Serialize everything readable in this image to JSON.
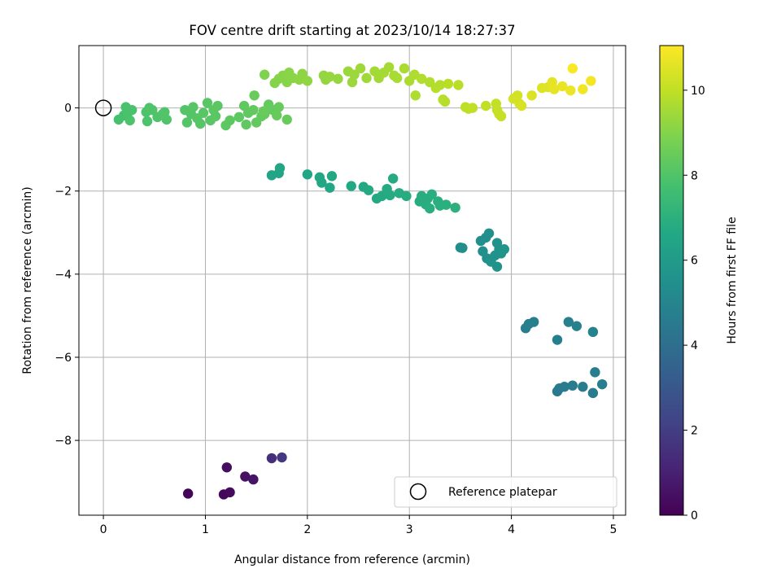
{
  "chart_data": {
    "type": "scatter",
    "title": "FOV centre drift starting at 2023/10/14 18:27:37",
    "xlabel": "Angular distance from reference (arcmin)",
    "ylabel": "Rotation from reference (arcmin)",
    "xlim": [
      -0.24,
      5.12
    ],
    "ylim": [
      -9.8,
      1.5
    ],
    "xticks": [
      0,
      1,
      2,
      3,
      4,
      5
    ],
    "yticks": [
      0,
      -2,
      -4,
      -6,
      -8
    ],
    "grid": true,
    "legend": {
      "placement": "lower-right",
      "entries": [
        {
          "label": "Reference platepar",
          "marker": "open-circle"
        }
      ]
    },
    "reference_point": {
      "x": 0,
      "y": 0
    },
    "colorbar": {
      "label": "Hours from first FF file",
      "min": 0,
      "max": 11.05,
      "ticks": [
        0,
        2,
        4,
        6,
        8,
        10
      ],
      "colormap": "viridis"
    },
    "points": [
      {
        "x": 0.83,
        "y": -9.28,
        "t": 0.1
      },
      {
        "x": 1.18,
        "y": -9.3,
        "t": 0.2
      },
      {
        "x": 1.24,
        "y": -9.25,
        "t": 0.3
      },
      {
        "x": 1.21,
        "y": -8.65,
        "t": 0.4
      },
      {
        "x": 1.39,
        "y": -8.87,
        "t": 0.5
      },
      {
        "x": 1.47,
        "y": -8.94,
        "t": 0.6
      },
      {
        "x": 1.65,
        "y": -8.43,
        "t": 1.5
      },
      {
        "x": 1.75,
        "y": -8.41,
        "t": 1.8
      },
      {
        "x": 4.45,
        "y": -6.82,
        "t": 4.5
      },
      {
        "x": 4.47,
        "y": -6.75,
        "t": 4.5
      },
      {
        "x": 4.52,
        "y": -6.71,
        "t": 4.55
      },
      {
        "x": 4.6,
        "y": -6.68,
        "t": 4.55
      },
      {
        "x": 4.7,
        "y": -6.71,
        "t": 4.6
      },
      {
        "x": 4.8,
        "y": -6.86,
        "t": 4.6
      },
      {
        "x": 4.82,
        "y": -6.36,
        "t": 4.65
      },
      {
        "x": 4.89,
        "y": -6.65,
        "t": 4.65
      },
      {
        "x": 4.14,
        "y": -5.3,
        "t": 4.7
      },
      {
        "x": 4.17,
        "y": -5.2,
        "t": 4.7
      },
      {
        "x": 4.22,
        "y": -5.15,
        "t": 4.75
      },
      {
        "x": 4.45,
        "y": -5.58,
        "t": 4.75
      },
      {
        "x": 4.56,
        "y": -5.15,
        "t": 4.8
      },
      {
        "x": 4.64,
        "y": -5.25,
        "t": 4.8
      },
      {
        "x": 4.8,
        "y": -5.39,
        "t": 4.85
      },
      {
        "x": 3.5,
        "y": -3.36,
        "t": 5.4
      },
      {
        "x": 3.52,
        "y": -3.37,
        "t": 5.4
      },
      {
        "x": 3.7,
        "y": -3.2,
        "t": 5.45
      },
      {
        "x": 3.72,
        "y": -3.45,
        "t": 5.45
      },
      {
        "x": 3.75,
        "y": -3.12,
        "t": 5.5
      },
      {
        "x": 3.78,
        "y": -3.02,
        "t": 5.5
      },
      {
        "x": 3.76,
        "y": -3.62,
        "t": 5.5
      },
      {
        "x": 3.8,
        "y": -3.7,
        "t": 5.55
      },
      {
        "x": 3.84,
        "y": -3.55,
        "t": 5.55
      },
      {
        "x": 3.86,
        "y": -3.25,
        "t": 5.55
      },
      {
        "x": 3.88,
        "y": -3.4,
        "t": 5.6
      },
      {
        "x": 3.86,
        "y": -3.82,
        "t": 5.6
      },
      {
        "x": 3.9,
        "y": -3.5,
        "t": 5.6
      },
      {
        "x": 3.93,
        "y": -3.4,
        "t": 5.65
      },
      {
        "x": 1.65,
        "y": -1.62,
        "t": 6.5
      },
      {
        "x": 1.72,
        "y": -1.57,
        "t": 6.5
      },
      {
        "x": 1.73,
        "y": -1.45,
        "t": 6.55
      },
      {
        "x": 2.0,
        "y": -1.6,
        "t": 6.55
      },
      {
        "x": 2.12,
        "y": -1.67,
        "t": 6.6
      },
      {
        "x": 2.14,
        "y": -1.8,
        "t": 6.6
      },
      {
        "x": 2.22,
        "y": -1.92,
        "t": 6.6
      },
      {
        "x": 2.24,
        "y": -1.64,
        "t": 6.65
      },
      {
        "x": 2.43,
        "y": -1.88,
        "t": 6.65
      },
      {
        "x": 2.55,
        "y": -1.9,
        "t": 6.65
      },
      {
        "x": 2.6,
        "y": -1.98,
        "t": 6.7
      },
      {
        "x": 2.68,
        "y": -2.18,
        "t": 6.7
      },
      {
        "x": 2.73,
        "y": -2.12,
        "t": 6.7
      },
      {
        "x": 2.78,
        "y": -1.95,
        "t": 6.75
      },
      {
        "x": 2.81,
        "y": -2.1,
        "t": 6.75
      },
      {
        "x": 2.84,
        "y": -1.7,
        "t": 6.75
      },
      {
        "x": 2.9,
        "y": -2.05,
        "t": 6.8
      },
      {
        "x": 2.97,
        "y": -2.12,
        "t": 6.8
      },
      {
        "x": 3.1,
        "y": -2.25,
        "t": 6.8
      },
      {
        "x": 3.12,
        "y": -2.12,
        "t": 6.85
      },
      {
        "x": 3.16,
        "y": -2.32,
        "t": 6.85
      },
      {
        "x": 3.18,
        "y": -2.18,
        "t": 6.85
      },
      {
        "x": 3.2,
        "y": -2.42,
        "t": 6.9
      },
      {
        "x": 3.22,
        "y": -2.08,
        "t": 6.9
      },
      {
        "x": 3.28,
        "y": -2.25,
        "t": 6.9
      },
      {
        "x": 3.3,
        "y": -2.35,
        "t": 6.95
      },
      {
        "x": 3.36,
        "y": -2.33,
        "t": 6.95
      },
      {
        "x": 3.45,
        "y": -2.4,
        "t": 7.0
      },
      {
        "x": 0.15,
        "y": -0.28,
        "t": 7.8
      },
      {
        "x": 0.2,
        "y": -0.18,
        "t": 7.8
      },
      {
        "x": 0.22,
        "y": 0.02,
        "t": 7.85
      },
      {
        "x": 0.24,
        "y": -0.12,
        "t": 7.85
      },
      {
        "x": 0.28,
        "y": -0.05,
        "t": 7.85
      },
      {
        "x": 0.26,
        "y": -0.3,
        "t": 7.9
      },
      {
        "x": 0.42,
        "y": -0.1,
        "t": 7.9
      },
      {
        "x": 0.43,
        "y": -0.32,
        "t": 7.9
      },
      {
        "x": 0.45,
        "y": 0.0,
        "t": 7.95
      },
      {
        "x": 0.48,
        "y": -0.05,
        "t": 7.95
      },
      {
        "x": 0.53,
        "y": -0.22,
        "t": 7.95
      },
      {
        "x": 0.58,
        "y": -0.15,
        "t": 8.0
      },
      {
        "x": 0.62,
        "y": -0.28,
        "t": 8.0
      },
      {
        "x": 0.6,
        "y": -0.1,
        "t": 8.0
      },
      {
        "x": 0.8,
        "y": -0.05,
        "t": 8.05
      },
      {
        "x": 0.82,
        "y": -0.35,
        "t": 8.05
      },
      {
        "x": 0.86,
        "y": -0.15,
        "t": 8.05
      },
      {
        "x": 0.88,
        "y": 0.02,
        "t": 8.1
      },
      {
        "x": 0.92,
        "y": -0.25,
        "t": 8.1
      },
      {
        "x": 0.95,
        "y": -0.38,
        "t": 8.1
      },
      {
        "x": 0.98,
        "y": -0.12,
        "t": 8.15
      },
      {
        "x": 1.02,
        "y": 0.12,
        "t": 8.15
      },
      {
        "x": 1.05,
        "y": -0.3,
        "t": 8.15
      },
      {
        "x": 1.08,
        "y": -0.05,
        "t": 8.2
      },
      {
        "x": 1.1,
        "y": -0.2,
        "t": 8.2
      },
      {
        "x": 1.12,
        "y": 0.05,
        "t": 8.2
      },
      {
        "x": 1.2,
        "y": -0.42,
        "t": 8.25
      },
      {
        "x": 1.24,
        "y": -0.3,
        "t": 8.25
      },
      {
        "x": 1.33,
        "y": -0.22,
        "t": 8.25
      },
      {
        "x": 1.38,
        "y": 0.05,
        "t": 8.3
      },
      {
        "x": 1.4,
        "y": -0.4,
        "t": 8.3
      },
      {
        "x": 1.42,
        "y": -0.12,
        "t": 8.3
      },
      {
        "x": 1.47,
        "y": -0.05,
        "t": 8.35
      },
      {
        "x": 1.5,
        "y": -0.35,
        "t": 8.35
      },
      {
        "x": 1.55,
        "y": -0.2,
        "t": 8.35
      },
      {
        "x": 1.58,
        "y": -0.15,
        "t": 8.4
      },
      {
        "x": 1.62,
        "y": 0.08,
        "t": 8.4
      },
      {
        "x": 1.66,
        "y": -0.05,
        "t": 8.4
      },
      {
        "x": 1.7,
        "y": -0.18,
        "t": 8.45
      },
      {
        "x": 1.72,
        "y": 0.02,
        "t": 8.45
      },
      {
        "x": 1.8,
        "y": -0.28,
        "t": 8.45
      },
      {
        "x": 1.48,
        "y": 0.3,
        "t": 8.5
      },
      {
        "x": 1.57,
        "y": -0.08,
        "t": 8.5
      },
      {
        "x": 1.58,
        "y": 0.8,
        "t": 8.9
      },
      {
        "x": 1.68,
        "y": 0.6,
        "t": 9.0
      },
      {
        "x": 1.72,
        "y": 0.7,
        "t": 9.0
      },
      {
        "x": 1.76,
        "y": 0.78,
        "t": 9.05
      },
      {
        "x": 1.8,
        "y": 0.62,
        "t": 9.05
      },
      {
        "x": 1.82,
        "y": 0.85,
        "t": 9.1
      },
      {
        "x": 1.86,
        "y": 0.72,
        "t": 9.1
      },
      {
        "x": 1.92,
        "y": 0.68,
        "t": 9.15
      },
      {
        "x": 1.95,
        "y": 0.82,
        "t": 9.15
      },
      {
        "x": 2.0,
        "y": 0.65,
        "t": 9.2
      },
      {
        "x": 2.16,
        "y": 0.78,
        "t": 9.25
      },
      {
        "x": 2.18,
        "y": 0.68,
        "t": 9.25
      },
      {
        "x": 2.22,
        "y": 0.75,
        "t": 9.3
      },
      {
        "x": 2.3,
        "y": 0.7,
        "t": 9.3
      },
      {
        "x": 2.4,
        "y": 0.88,
        "t": 9.35
      },
      {
        "x": 2.44,
        "y": 0.62,
        "t": 9.4
      },
      {
        "x": 2.46,
        "y": 0.8,
        "t": 9.4
      },
      {
        "x": 2.52,
        "y": 0.95,
        "t": 9.45
      },
      {
        "x": 2.58,
        "y": 0.72,
        "t": 9.45
      },
      {
        "x": 2.66,
        "y": 0.88,
        "t": 9.5
      },
      {
        "x": 2.7,
        "y": 0.72,
        "t": 9.5
      },
      {
        "x": 2.75,
        "y": 0.85,
        "t": 9.55
      },
      {
        "x": 2.8,
        "y": 0.98,
        "t": 9.55
      },
      {
        "x": 2.85,
        "y": 0.78,
        "t": 9.6
      },
      {
        "x": 2.88,
        "y": 0.72,
        "t": 9.6
      },
      {
        "x": 2.95,
        "y": 0.95,
        "t": 9.65
      },
      {
        "x": 3.0,
        "y": 0.65,
        "t": 9.65
      },
      {
        "x": 3.05,
        "y": 0.8,
        "t": 9.7
      },
      {
        "x": 3.06,
        "y": 0.3,
        "t": 9.7
      },
      {
        "x": 3.12,
        "y": 0.7,
        "t": 9.75
      },
      {
        "x": 3.2,
        "y": 0.62,
        "t": 9.75
      },
      {
        "x": 3.26,
        "y": 0.48,
        "t": 9.8
      },
      {
        "x": 3.3,
        "y": 0.55,
        "t": 9.8
      },
      {
        "x": 3.33,
        "y": 0.2,
        "t": 9.85
      },
      {
        "x": 3.35,
        "y": 0.15,
        "t": 9.85
      },
      {
        "x": 3.38,
        "y": 0.58,
        "t": 9.9
      },
      {
        "x": 3.48,
        "y": 0.55,
        "t": 9.9
      },
      {
        "x": 3.55,
        "y": 0.02,
        "t": 9.95
      },
      {
        "x": 3.58,
        "y": -0.02,
        "t": 9.95
      },
      {
        "x": 3.62,
        "y": 0.0,
        "t": 10.0
      },
      {
        "x": 3.75,
        "y": 0.05,
        "t": 10.0
      },
      {
        "x": 3.85,
        "y": 0.1,
        "t": 10.05
      },
      {
        "x": 3.86,
        "y": -0.05,
        "t": 10.05
      },
      {
        "x": 3.88,
        "y": -0.15,
        "t": 10.1
      },
      {
        "x": 3.9,
        "y": -0.2,
        "t": 10.1
      },
      {
        "x": 4.02,
        "y": 0.22,
        "t": 10.3
      },
      {
        "x": 4.06,
        "y": 0.3,
        "t": 10.35
      },
      {
        "x": 4.08,
        "y": 0.1,
        "t": 10.35
      },
      {
        "x": 4.1,
        "y": 0.05,
        "t": 10.4
      },
      {
        "x": 4.2,
        "y": 0.3,
        "t": 10.45
      },
      {
        "x": 4.3,
        "y": 0.48,
        "t": 10.5
      },
      {
        "x": 4.36,
        "y": 0.5,
        "t": 10.55
      },
      {
        "x": 4.4,
        "y": 0.62,
        "t": 10.6
      },
      {
        "x": 4.42,
        "y": 0.45,
        "t": 10.65
      },
      {
        "x": 4.5,
        "y": 0.52,
        "t": 10.7
      },
      {
        "x": 4.58,
        "y": 0.42,
        "t": 10.75
      },
      {
        "x": 4.6,
        "y": 0.95,
        "t": 11.0
      },
      {
        "x": 4.7,
        "y": 0.45,
        "t": 10.85
      },
      {
        "x": 4.78,
        "y": 0.65,
        "t": 10.9
      }
    ]
  }
}
